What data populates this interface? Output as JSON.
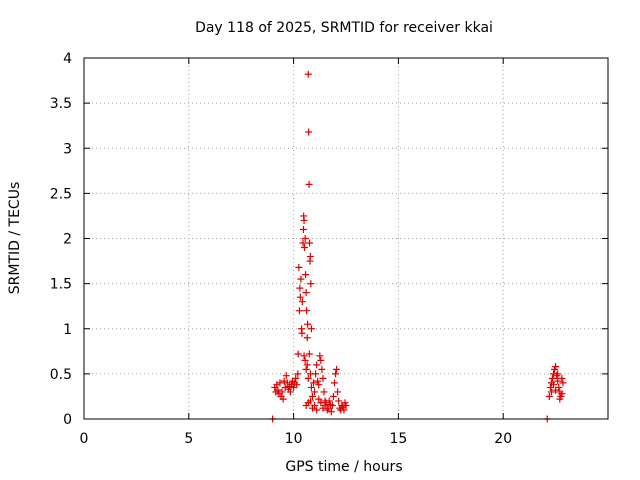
{
  "chart_data": {
    "type": "scatter",
    "title": "Day 118 of 2025, SRMTID for receiver kkai",
    "xlabel": "GPS time / hours",
    "ylabel": "SRMTID / TECUs",
    "xlim": [
      0,
      25
    ],
    "ylim": [
      0,
      4
    ],
    "xticks": [
      0,
      5,
      10,
      15,
      20
    ],
    "xtick_labels": [
      "0",
      "5",
      "10",
      "15",
      "20"
    ],
    "yticks": [
      0,
      0.5,
      1,
      1.5,
      2,
      2.5,
      3,
      3.5,
      4
    ],
    "ytick_labels": [
      "0",
      "0.5",
      "1",
      "1.5",
      "2",
      "2.5",
      "3",
      "3.5",
      "4"
    ],
    "grid": true,
    "marker": "plus",
    "color": "#e00000",
    "series": [
      {
        "points": [
          [
            9.0,
            0.0
          ],
          [
            22.1,
            0.0
          ],
          [
            9.1,
            0.35
          ],
          [
            9.15,
            0.3
          ],
          [
            9.2,
            0.38
          ],
          [
            9.25,
            0.32
          ],
          [
            9.3,
            0.28
          ],
          [
            9.35,
            0.4
          ],
          [
            9.4,
            0.25
          ],
          [
            9.45,
            0.3
          ],
          [
            9.5,
            0.22
          ],
          [
            9.55,
            0.42
          ],
          [
            9.6,
            0.35
          ],
          [
            9.65,
            0.48
          ],
          [
            9.7,
            0.4
          ],
          [
            9.75,
            0.33
          ],
          [
            9.8,
            0.36
          ],
          [
            9.85,
            0.3
          ],
          [
            9.9,
            0.38
          ],
          [
            9.95,
            0.42
          ],
          [
            10.0,
            0.35
          ],
          [
            10.05,
            0.4
          ],
          [
            10.1,
            0.45
          ],
          [
            10.15,
            0.38
          ],
          [
            10.2,
            0.5
          ],
          [
            10.22,
            0.72
          ],
          [
            10.25,
            1.68
          ],
          [
            10.28,
            1.2
          ],
          [
            10.3,
            1.45
          ],
          [
            10.32,
            1.35
          ],
          [
            10.35,
            1.55
          ],
          [
            10.38,
            1.0
          ],
          [
            10.4,
            0.95
          ],
          [
            10.42,
            1.3
          ],
          [
            10.45,
            1.95
          ],
          [
            10.47,
            2.1
          ],
          [
            10.48,
            2.25
          ],
          [
            10.5,
            2.2
          ],
          [
            10.52,
            1.9
          ],
          [
            10.55,
            2.0
          ],
          [
            10.57,
            1.6
          ],
          [
            10.6,
            1.4
          ],
          [
            10.62,
            1.2
          ],
          [
            10.65,
            0.9
          ],
          [
            10.67,
            1.05
          ],
          [
            10.7,
            3.82
          ],
          [
            10.72,
            3.18
          ],
          [
            10.74,
            2.6
          ],
          [
            10.76,
            1.95
          ],
          [
            10.78,
            1.75
          ],
          [
            10.8,
            1.8
          ],
          [
            10.82,
            1.5
          ],
          [
            10.85,
            1.0
          ],
          [
            10.5,
            0.7
          ],
          [
            10.55,
            0.65
          ],
          [
            10.6,
            0.55
          ],
          [
            10.65,
            0.6
          ],
          [
            10.7,
            0.45
          ],
          [
            10.75,
            0.72
          ],
          [
            10.8,
            0.5
          ],
          [
            10.85,
            0.35
          ],
          [
            10.9,
            0.25
          ],
          [
            10.95,
            0.4
          ],
          [
            11.0,
            0.3
          ],
          [
            11.05,
            0.5
          ],
          [
            11.1,
            0.6
          ],
          [
            11.15,
            0.42
          ],
          [
            11.2,
            0.38
          ],
          [
            11.25,
            0.7
          ],
          [
            11.3,
            0.65
          ],
          [
            11.35,
            0.55
          ],
          [
            11.4,
            0.45
          ],
          [
            11.45,
            0.3
          ],
          [
            11.5,
            0.2
          ],
          [
            10.6,
            0.15
          ],
          [
            10.7,
            0.18
          ],
          [
            10.8,
            0.2
          ],
          [
            10.9,
            0.12
          ],
          [
            11.0,
            0.15
          ],
          [
            11.1,
            0.1
          ],
          [
            11.2,
            0.22
          ],
          [
            11.3,
            0.18
          ],
          [
            11.4,
            0.12
          ],
          [
            11.5,
            0.15
          ],
          [
            11.6,
            0.1
          ],
          [
            11.7,
            0.2
          ],
          [
            11.8,
            0.08
          ],
          [
            11.85,
            0.15
          ],
          [
            11.9,
            0.25
          ],
          [
            11.95,
            0.4
          ],
          [
            12.0,
            0.5
          ],
          [
            12.05,
            0.55
          ],
          [
            12.1,
            0.3
          ],
          [
            12.15,
            0.2
          ],
          [
            12.2,
            0.12
          ],
          [
            12.3,
            0.15
          ],
          [
            12.4,
            0.1
          ],
          [
            12.45,
            0.18
          ],
          [
            12.5,
            0.15
          ],
          [
            11.55,
            0.18
          ],
          [
            11.65,
            0.12
          ],
          [
            11.75,
            0.16
          ],
          [
            12.25,
            0.1
          ],
          [
            12.35,
            0.13
          ],
          [
            22.2,
            0.25
          ],
          [
            22.25,
            0.35
          ],
          [
            22.3,
            0.4
          ],
          [
            22.35,
            0.45
          ],
          [
            22.4,
            0.5
          ],
          [
            22.45,
            0.55
          ],
          [
            22.5,
            0.58
          ],
          [
            22.55,
            0.48
          ],
          [
            22.6,
            0.42
          ],
          [
            22.65,
            0.35
          ],
          [
            22.7,
            0.3
          ],
          [
            22.75,
            0.25
          ],
          [
            22.8,
            0.45
          ],
          [
            22.85,
            0.4
          ],
          [
            22.3,
            0.3
          ],
          [
            22.4,
            0.38
          ],
          [
            22.5,
            0.32
          ],
          [
            22.6,
            0.5
          ],
          [
            22.7,
            0.22
          ],
          [
            22.8,
            0.28
          ]
        ]
      }
    ]
  }
}
